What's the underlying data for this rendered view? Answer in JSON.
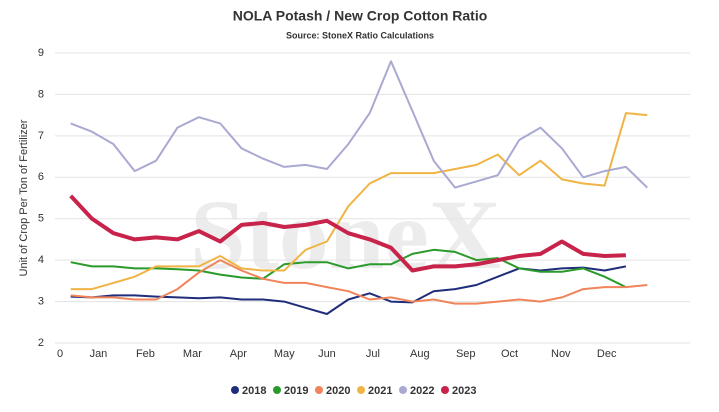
{
  "chart_data": {
    "type": "line",
    "title": "NOLA Potash / New Crop Cotton Ratio",
    "subtitle": "Source: StoneX Ratio Calculations",
    "watermark": "StoneX",
    "y_label": "Unit of Crop Per Ton of Fertilizer",
    "x": [
      1,
      3,
      5,
      7,
      9,
      11,
      13,
      15,
      17,
      19,
      21,
      23,
      25,
      27,
      29,
      31,
      33,
      35,
      37,
      39,
      41,
      43,
      45,
      47,
      49,
      51,
      53,
      55
    ],
    "xlim": [
      0,
      59
    ],
    "xticks": [
      0,
      {
        "value": 3.6,
        "label": "Jan"
      },
      {
        "value": 8.0,
        "label": "Feb"
      },
      {
        "value": 12.4,
        "label": "Mar"
      },
      {
        "value": 16.7,
        "label": "Apr"
      },
      {
        "value": 21.0,
        "label": "May"
      },
      {
        "value": 25.0,
        "label": "Jun"
      },
      {
        "value": 29.3,
        "label": "Jul"
      },
      {
        "value": 33.7,
        "label": "Aug"
      },
      {
        "value": 38.0,
        "label": "Sep"
      },
      {
        "value": 42.1,
        "label": "Oct"
      },
      {
        "value": 46.9,
        "label": "Nov"
      },
      {
        "value": 51.2,
        "label": "Dec"
      }
    ],
    "ylim": [
      2,
      9
    ],
    "yticks": [
      2,
      3,
      4,
      5,
      6,
      7,
      8,
      9
    ],
    "grid": true,
    "legend": "bottom",
    "series": [
      {
        "name": "2018",
        "color": "#1f2d7a",
        "width": 2,
        "values": [
          3.12,
          3.1,
          3.15,
          3.15,
          3.12,
          3.1,
          3.08,
          3.1,
          3.05,
          3.05,
          3.0,
          2.85,
          2.7,
          3.05,
          3.2,
          3.0,
          2.98,
          3.25,
          3.3,
          3.4,
          3.6,
          3.8,
          3.75,
          3.8,
          3.82,
          3.75,
          3.85,
          null
        ]
      },
      {
        "name": "2019",
        "color": "#2a9a2a",
        "width": 2,
        "values": [
          3.95,
          3.85,
          3.85,
          3.8,
          3.8,
          3.78,
          3.75,
          3.65,
          3.58,
          3.55,
          3.9,
          3.95,
          3.95,
          3.8,
          3.9,
          3.9,
          4.15,
          4.25,
          4.2,
          4.0,
          4.05,
          3.8,
          3.72,
          3.72,
          3.8,
          3.6,
          3.35,
          null
        ]
      },
      {
        "name": "2020",
        "color": "#f0845a",
        "width": 2,
        "values": [
          3.15,
          3.1,
          3.1,
          3.05,
          3.05,
          3.3,
          3.7,
          4.0,
          3.75,
          3.55,
          3.45,
          3.45,
          3.35,
          3.25,
          3.05,
          3.1,
          3.0,
          3.05,
          2.95,
          2.95,
          3.0,
          3.05,
          3.0,
          3.1,
          3.3,
          3.35,
          3.35,
          3.4
        ]
      },
      {
        "name": "2021",
        "color": "#f0b445",
        "width": 2,
        "values": [
          3.3,
          3.3,
          3.45,
          3.6,
          3.85,
          3.85,
          3.85,
          4.1,
          3.8,
          3.75,
          3.75,
          4.25,
          4.45,
          5.3,
          5.85,
          6.1,
          6.1,
          6.1,
          6.2,
          6.3,
          6.55,
          6.05,
          6.4,
          5.95,
          5.85,
          5.8,
          7.55,
          7.5
        ]
      },
      {
        "name": "2022",
        "color": "#a9a9d2",
        "width": 2,
        "values": [
          7.3,
          7.1,
          6.8,
          6.15,
          6.4,
          7.2,
          7.45,
          7.3,
          6.7,
          6.45,
          6.25,
          6.3,
          6.2,
          6.8,
          7.55,
          8.8,
          7.6,
          6.4,
          5.75,
          5.9,
          6.05,
          6.9,
          7.2,
          6.7,
          6.0,
          6.15,
          6.25,
          5.75
        ]
      },
      {
        "name": "2023",
        "color": "#c8234a",
        "width": 4,
        "values": [
          5.55,
          5.0,
          4.65,
          4.5,
          4.55,
          4.5,
          4.7,
          4.45,
          4.85,
          4.9,
          4.8,
          4.85,
          4.95,
          4.65,
          4.5,
          4.3,
          3.75,
          3.85,
          3.85,
          3.9,
          4.0,
          4.1,
          4.15,
          4.45,
          4.15,
          4.1,
          4.12,
          null
        ]
      }
    ]
  }
}
